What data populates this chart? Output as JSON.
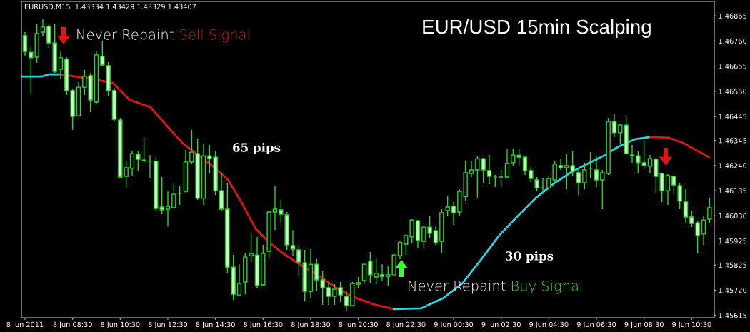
{
  "chart_data": {
    "type": "candlestick",
    "title": "EUR/USD 15min Scalping",
    "annotations": [
      "EURUSD,M15  1.43334 1.43429 1.43329 1.43407",
      "Never Repaint",
      "Sell Signal",
      "65 pips",
      "Never Repaint",
      "Buy Signal",
      "30 pips"
    ],
    "x": [
      "2011-06-08T06:30",
      "2011-06-08T06:45",
      "2011-06-08T07:00",
      "2011-06-08T07:15",
      "2011-06-08T07:30",
      "2011-06-08T07:45",
      "2011-06-08T08:00",
      "2011-06-08T08:15",
      "2011-06-08T08:30",
      "2011-06-08T08:45",
      "2011-06-08T09:00",
      "2011-06-08T09:15",
      "2011-06-08T09:30",
      "2011-06-08T09:45",
      "2011-06-08T10:00",
      "2011-06-08T10:15",
      "2011-06-08T10:30",
      "2011-06-08T10:45",
      "2011-06-08T11:00",
      "2011-06-08T11:15",
      "2011-06-08T11:30",
      "2011-06-08T11:45",
      "2011-06-08T12:00",
      "2011-06-08T12:15",
      "2011-06-08T12:30",
      "2011-06-08T12:45",
      "2011-06-08T13:00",
      "2011-06-08T13:15",
      "2011-06-08T13:30",
      "2011-06-08T13:45",
      "2011-06-08T14:00",
      "2011-06-08T14:15",
      "2011-06-08T14:30",
      "2011-06-08T14:45",
      "2011-06-08T15:00",
      "2011-06-08T15:15",
      "2011-06-08T15:30",
      "2011-06-08T15:45",
      "2011-06-08T16:00",
      "2011-06-08T16:15",
      "2011-06-08T16:30",
      "2011-06-08T16:45",
      "2011-06-08T17:00",
      "2011-06-08T17:15",
      "2011-06-08T17:30",
      "2011-06-08T17:45",
      "2011-06-08T18:00",
      "2011-06-08T18:15",
      "2011-06-08T18:30",
      "2011-06-08T18:45",
      "2011-06-08T19:00",
      "2011-06-08T19:15",
      "2011-06-08T19:30",
      "2011-06-08T19:45",
      "2011-06-08T20:00",
      "2011-06-08T20:15",
      "2011-06-08T20:30",
      "2011-06-08T20:45",
      "2011-06-08T21:00",
      "2011-06-08T21:15",
      "2011-06-08T21:30",
      "2011-06-08T21:45",
      "2011-06-08T22:00",
      "2011-06-08T22:15",
      "2011-06-08T22:30",
      "2011-06-08T22:45",
      "2011-06-08T23:00",
      "2011-06-08T23:15",
      "2011-06-08T23:30",
      "2011-06-08T23:45",
      "2011-06-09T00:00",
      "2011-06-09T00:15",
      "2011-06-09T00:30",
      "2011-06-09T00:45",
      "2011-06-09T01:00",
      "2011-06-09T01:15",
      "2011-06-09T01:30",
      "2011-06-09T01:45",
      "2011-06-09T02:00",
      "2011-06-09T02:15",
      "2011-06-09T02:30",
      "2011-06-09T02:45",
      "2011-06-09T03:00",
      "2011-06-09T03:15",
      "2011-06-09T03:30",
      "2011-06-09T03:45",
      "2011-06-09T04:00",
      "2011-06-09T04:15",
      "2011-06-09T04:30",
      "2011-06-09T04:45",
      "2011-06-09T05:00",
      "2011-06-09T05:15",
      "2011-06-09T05:30",
      "2011-06-09T05:45",
      "2011-06-09T06:00",
      "2011-06-09T06:15",
      "2011-06-09T06:30",
      "2011-06-09T06:45",
      "2011-06-09T07:00",
      "2011-06-09T07:15",
      "2011-06-09T07:30",
      "2011-06-09T07:45",
      "2011-06-09T08:00",
      "2011-06-09T08:15",
      "2011-06-09T08:30",
      "2011-06-09T08:45",
      "2011-06-09T09:00",
      "2011-06-09T09:15",
      "2011-06-09T09:30",
      "2011-06-09T09:45",
      "2011-06-09T10:00",
      "2011-06-09T10:15",
      "2011-06-09T10:30",
      "2011-06-09T10:45",
      "2011-06-09T11:00",
      "2011-06-09T11:15"
    ],
    "ohlc": [
      [
        1.46782,
        1.46797,
        1.46699,
        1.46716
      ],
      [
        1.46713,
        1.46737,
        1.46538,
        1.4669
      ],
      [
        1.46693,
        1.46833,
        1.46669,
        1.46791
      ],
      [
        1.46797,
        1.46851,
        1.46782,
        1.46818
      ],
      [
        1.46821,
        1.46833,
        1.46731,
        1.46752
      ],
      [
        1.46752,
        1.46833,
        1.46627,
        1.46633
      ],
      [
        1.46642,
        1.46716,
        1.46603,
        1.4669
      ],
      [
        1.46684,
        1.46693,
        1.46535,
        1.46553
      ],
      [
        1.46553,
        1.46558,
        1.46389,
        1.46445
      ],
      [
        1.46448,
        1.46588,
        1.46445,
        1.46567
      ],
      [
        1.46567,
        1.46639,
        1.46535,
        1.46612
      ],
      [
        1.46615,
        1.46627,
        1.46463,
        1.46514
      ],
      [
        1.46505,
        1.46716,
        1.46499,
        1.46702
      ],
      [
        1.46696,
        1.46758,
        1.46654,
        1.4666
      ],
      [
        1.46657,
        1.46672,
        1.46529,
        1.46553
      ],
      [
        1.46553,
        1.46564,
        1.46424,
        1.46433
      ],
      [
        1.4643,
        1.46439,
        1.46186,
        1.46192
      ],
      [
        1.46195,
        1.4626,
        1.46147,
        1.46231
      ],
      [
        1.46228,
        1.46299,
        1.46195,
        1.4629
      ],
      [
        1.46287,
        1.46299,
        1.46216,
        1.46266
      ],
      [
        1.46263,
        1.46356,
        1.46252,
        1.4626
      ],
      [
        1.46258,
        1.46284,
        1.46186,
        1.46258
      ],
      [
        1.46258,
        1.46275,
        1.46046,
        1.46061
      ],
      [
        1.46067,
        1.46192,
        1.46037,
        1.46055
      ],
      [
        1.46058,
        1.46132,
        1.45986,
        1.4607
      ],
      [
        1.46064,
        1.46165,
        1.46061,
        1.4612
      ],
      [
        1.46123,
        1.46156,
        1.46076,
        1.46123
      ],
      [
        1.46132,
        1.46305,
        1.46126,
        1.46255
      ],
      [
        1.46255,
        1.46389,
        1.46246,
        1.46296
      ],
      [
        1.4629,
        1.4635,
        1.46097,
        1.46103
      ],
      [
        1.46103,
        1.46329,
        1.46076,
        1.46281
      ],
      [
        1.46281,
        1.46326,
        1.4621,
        1.46269
      ],
      [
        1.46275,
        1.46299,
        1.46117,
        1.46135
      ],
      [
        1.46135,
        1.46207,
        1.46052,
        1.46058
      ],
      [
        1.46058,
        1.46165,
        1.4579,
        1.45816
      ],
      [
        1.45816,
        1.45867,
        1.45679,
        1.45703
      ],
      [
        1.457,
        1.45828,
        1.45694,
        1.45748
      ],
      [
        1.45754,
        1.45873,
        1.45703,
        1.45858
      ],
      [
        1.45864,
        1.45957,
        1.45837,
        1.45873
      ],
      [
        1.45867,
        1.45942,
        1.4573,
        1.45739
      ],
      [
        1.45742,
        1.45909,
        1.45736,
        1.45873
      ],
      [
        1.45882,
        1.46052,
        1.45852,
        1.46046
      ],
      [
        1.46046,
        1.46156,
        1.45971,
        1.46058
      ],
      [
        1.46055,
        1.46097,
        1.45998,
        1.46037
      ],
      [
        1.46034,
        1.46046,
        1.45888,
        1.45909
      ],
      [
        1.45906,
        1.45971,
        1.45864,
        1.45891
      ],
      [
        1.45888,
        1.45909,
        1.45778,
        1.45837
      ],
      [
        1.45834,
        1.45888,
        1.45673,
        1.45715
      ],
      [
        1.45715,
        1.45891,
        1.45688,
        1.45828
      ],
      [
        1.45828,
        1.45849,
        1.45718,
        1.45763
      ],
      [
        1.45763,
        1.45799,
        1.45659,
        1.4573
      ],
      [
        1.4573,
        1.45754,
        1.45659,
        1.45694
      ],
      [
        1.45694,
        1.45745,
        1.45659,
        1.45724
      ],
      [
        1.4573,
        1.45754,
        1.4567,
        1.457
      ],
      [
        1.45694,
        1.45715,
        1.45635,
        1.45656
      ],
      [
        1.45656,
        1.45754,
        1.45653,
        1.45748
      ],
      [
        1.45745,
        1.45775,
        1.4573,
        1.45751
      ],
      [
        1.4576,
        1.45834,
        1.45748,
        1.45828
      ],
      [
        1.4584,
        1.45879,
        1.45748,
        1.45784
      ],
      [
        1.45775,
        1.45855,
        1.45745,
        1.4579
      ],
      [
        1.45784,
        1.45828,
        1.4576,
        1.45778
      ],
      [
        1.45778,
        1.45822,
        1.45739,
        1.45784
      ],
      [
        1.45784,
        1.45873,
        1.45781,
        1.45867
      ],
      [
        1.45864,
        1.45927,
        1.45849,
        1.45918
      ],
      [
        1.45912,
        1.45954,
        1.45867,
        1.45948
      ],
      [
        1.45942,
        1.46016,
        1.45918,
        1.46013
      ],
      [
        1.4601,
        1.46013,
        1.45894,
        1.45927
      ],
      [
        1.45924,
        1.45992,
        1.45897,
        1.45983
      ],
      [
        1.45983,
        1.46031,
        1.45939,
        1.45957
      ],
      [
        1.45968,
        1.45986,
        1.45909,
        1.45918
      ],
      [
        1.45924,
        1.46058,
        1.45873,
        1.46043
      ],
      [
        1.46052,
        1.46111,
        1.46028,
        1.46067
      ],
      [
        1.4607,
        1.46088,
        1.45992,
        1.46043
      ],
      [
        1.46046,
        1.46141,
        1.46028,
        1.46132
      ],
      [
        1.46111,
        1.4626,
        1.46091,
        1.4621
      ],
      [
        1.46207,
        1.4626,
        1.46192,
        1.46222
      ],
      [
        1.46222,
        1.46281,
        1.46106,
        1.46269
      ],
      [
        1.46269,
        1.46272,
        1.46165,
        1.46222
      ],
      [
        1.46219,
        1.46284,
        1.46162,
        1.46195
      ],
      [
        1.46192,
        1.46201,
        1.4615,
        1.46192
      ],
      [
        1.46192,
        1.46222,
        1.46156,
        1.46192
      ],
      [
        1.46192,
        1.46311,
        1.46186,
        1.46249
      ],
      [
        1.46252,
        1.46311,
        1.4624,
        1.46284
      ],
      [
        1.46284,
        1.46311,
        1.4624,
        1.46275
      ],
      [
        1.46275,
        1.46281,
        1.46201,
        1.46219
      ],
      [
        1.46219,
        1.46237,
        1.46171,
        1.46186
      ],
      [
        1.4618,
        1.46192,
        1.46132,
        1.46147
      ],
      [
        1.46147,
        1.46186,
        1.4612,
        1.46147
      ],
      [
        1.46147,
        1.46195,
        1.46141,
        1.46186
      ],
      [
        1.4618,
        1.4626,
        1.46171,
        1.46246
      ],
      [
        1.4624,
        1.46269,
        1.46222,
        1.46231
      ],
      [
        1.46231,
        1.4629,
        1.46141,
        1.4624
      ],
      [
        1.4624,
        1.46299,
        1.46195,
        1.46216
      ],
      [
        1.4621,
        1.46222,
        1.46117,
        1.46168
      ],
      [
        1.46168,
        1.46252,
        1.46141,
        1.46222
      ],
      [
        1.46228,
        1.46296,
        1.46186,
        1.46228
      ],
      [
        1.46222,
        1.46281,
        1.4615,
        1.4618
      ],
      [
        1.4618,
        1.46222,
        1.46058,
        1.4621
      ],
      [
        1.46207,
        1.46439,
        1.46201,
        1.46424
      ],
      [
        1.46424,
        1.46454,
        1.46359,
        1.46377
      ],
      [
        1.46377,
        1.46415,
        1.46329,
        1.46409
      ],
      [
        1.46409,
        1.46445,
        1.46284,
        1.4629
      ],
      [
        1.46284,
        1.46326,
        1.46252,
        1.46281
      ],
      [
        1.46281,
        1.46299,
        1.4621,
        1.46252
      ],
      [
        1.46252,
        1.46344,
        1.46231,
        1.4624
      ],
      [
        1.46237,
        1.46284,
        1.4621,
        1.46269
      ],
      [
        1.46266,
        1.46275,
        1.46126,
        1.46195
      ],
      [
        1.46207,
        1.4621,
        1.46088,
        1.46135
      ],
      [
        1.46135,
        1.46204,
        1.46076,
        1.46198
      ],
      [
        1.46195,
        1.46198,
        1.4612,
        1.46159
      ],
      [
        1.46156,
        1.46165,
        1.46058,
        1.46091
      ],
      [
        1.46088,
        1.46141,
        1.45998,
        1.46025
      ],
      [
        1.46025,
        1.46052,
        1.45983,
        1.45998
      ],
      [
        1.46001,
        1.46007,
        1.45876,
        1.45948
      ],
      [
        1.45954,
        1.46028,
        1.45909,
        1.46013
      ],
      [
        1.46016,
        1.46106,
        1.45998,
        1.46064
      ]
    ],
    "series": [
      {
        "type": "line",
        "color": "#2ad4e6",
        "x": [
          "2011-06-08T06:22",
          "2011-06-08T07:13",
          "2011-06-08T07:31",
          "2011-06-08T08:00"
        ],
        "values": [
          1.46612,
          1.46612,
          1.46621,
          1.46621
        ]
      },
      {
        "type": "line",
        "color": "#e01414",
        "x": [
          "2011-06-08T08:00",
          "2011-06-08T09:15",
          "2011-06-08T10:12",
          "2011-06-08T10:54",
          "2011-06-08T11:46",
          "2011-06-08T13:06",
          "2011-06-08T13:30",
          "2011-06-08T14:28",
          "2011-06-08T15:02",
          "2011-06-08T15:37",
          "2011-06-08T16:11",
          "2011-06-08T16:46",
          "2011-06-08T17:21",
          "2011-06-08T17:56",
          "2011-06-08T18:31",
          "2011-06-08T19:05",
          "2011-06-08T19:40",
          "2011-06-08T20:14",
          "2011-06-08T21:12",
          "2011-06-08T21:59"
        ],
        "values": [
          1.46621,
          1.46603,
          1.46585,
          1.46514,
          1.46484,
          1.46335,
          1.46305,
          1.46231,
          1.4618,
          1.46082,
          1.45977,
          1.45918,
          1.45873,
          1.45834,
          1.45799,
          1.45763,
          1.45724,
          1.45694,
          1.45659,
          1.45641
        ]
      },
      {
        "type": "line",
        "color": "#2ad4e6",
        "x": [
          "2011-06-08T21:59",
          "2011-06-08T23:08",
          "2011-06-09T00:05",
          "2011-06-09T00:52",
          "2011-06-09T01:40",
          "2011-06-09T02:25",
          "2011-06-09T03:11",
          "2011-06-09T03:58",
          "2011-06-09T04:43",
          "2011-06-09T05:30",
          "2011-06-09T06:17",
          "2011-06-09T06:52",
          "2011-06-09T07:26",
          "2011-06-09T08:07",
          "2011-06-09T08:46"
        ],
        "values": [
          1.45641,
          1.45644,
          1.45688,
          1.45748,
          1.45849,
          1.45948,
          1.46028,
          1.46106,
          1.46165,
          1.46216,
          1.46255,
          1.46284,
          1.4632,
          1.4635,
          1.46359
        ]
      },
      {
        "type": "line",
        "color": "#e01414",
        "x": [
          "2011-06-09T08:46",
          "2011-06-09T09:33",
          "2011-06-09T10:08",
          "2011-06-09T11:04",
          "2011-06-09T11:14"
        ],
        "values": [
          1.46359,
          1.46356,
          1.46335,
          1.46284,
          1.46275
        ]
      }
    ],
    "xlim": [
      "2011-06-08T06:21",
      "2011-06-09T11:27"
    ],
    "xticks": [
      {
        "value": "2011-06-08T06:30",
        "label": "8 Jun 2011"
      },
      {
        "value": "2011-06-08T08:30",
        "label": "8 Jun 08:30"
      },
      {
        "value": "2011-06-08T10:30",
        "label": "8 Jun 10:30"
      },
      {
        "value": "2011-06-08T12:30",
        "label": "8 Jun 12:30"
      },
      {
        "value": "2011-06-08T14:30",
        "label": "8 Jun 14:30"
      },
      {
        "value": "2011-06-08T16:30",
        "label": "8 Jun 16:30"
      },
      {
        "value": "2011-06-08T18:30",
        "label": "8 Jun 18:30"
      },
      {
        "value": "2011-06-08T20:30",
        "label": "8 Jun 20:30"
      },
      {
        "value": "2011-06-08T22:30",
        "label": "8 Jun 22:30"
      },
      {
        "value": "2011-06-09T00:30",
        "label": "9 Jun 00:30"
      },
      {
        "value": "2011-06-09T02:30",
        "label": "9 Jun 02:30"
      },
      {
        "value": "2011-06-09T04:30",
        "label": "9 Jun 04:30"
      },
      {
        "value": "2011-06-09T06:30",
        "label": "9 Jun 06:30"
      },
      {
        "value": "2011-06-09T08:30",
        "label": "9 Jun 08:30"
      },
      {
        "value": "2011-06-09T10:30",
        "label": "9 Jun 10:30"
      }
    ],
    "ylim": [
      1.45605,
      1.46925
    ],
    "yticks": [
      1.46865,
      {
        "value": 1.4676,
        "label": "1.46760"
      },
      1.46655,
      {
        "value": 1.4655,
        "label": "1.46550"
      },
      1.46445,
      1.46345,
      {
        "value": 1.4624,
        "label": "1.46240"
      },
      1.46135,
      {
        "value": 1.4603,
        "label": "1.46030"
      },
      1.45925,
      1.45825,
      {
        "value": 1.4572,
        "label": "1.45720"
      },
      1.45615
    ],
    "grid": false,
    "legend": false
  }
}
